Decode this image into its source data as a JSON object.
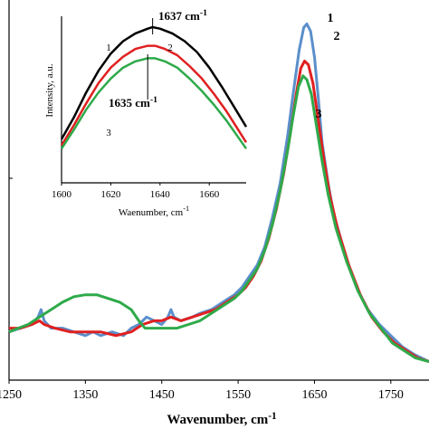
{
  "chart_data": [
    {
      "type": "line",
      "panel": "main",
      "xlabel": "Wavenumber, cm",
      "xlabel_superscript": "-1",
      "ylabel": "",
      "xlim": [
        1250,
        1800
      ],
      "ylim": [
        0,
        1.0
      ],
      "xticks": [
        1250,
        1350,
        1450,
        1550,
        1650,
        1750
      ],
      "xtick_labels": [
        "1250",
        "1350",
        "1450",
        "1550",
        "1650",
        "1750"
      ],
      "grid": false,
      "series": [
        {
          "curve_label": "1",
          "color": "#5b8fcb",
          "points": [
            [
              1250,
              0.13
            ],
            [
              1265,
              0.14
            ],
            [
              1280,
              0.15
            ],
            [
              1288,
              0.17
            ],
            [
              1292,
              0.19
            ],
            [
              1296,
              0.16
            ],
            [
              1305,
              0.14
            ],
            [
              1320,
              0.14
            ],
            [
              1335,
              0.13
            ],
            [
              1350,
              0.12
            ],
            [
              1360,
              0.13
            ],
            [
              1370,
              0.12
            ],
            [
              1385,
              0.13
            ],
            [
              1400,
              0.12
            ],
            [
              1410,
              0.14
            ],
            [
              1420,
              0.15
            ],
            [
              1430,
              0.17
            ],
            [
              1440,
              0.16
            ],
            [
              1450,
              0.15
            ],
            [
              1458,
              0.17
            ],
            [
              1462,
              0.19
            ],
            [
              1466,
              0.17
            ],
            [
              1475,
              0.16
            ],
            [
              1490,
              0.17
            ],
            [
              1500,
              0.18
            ],
            [
              1515,
              0.19
            ],
            [
              1530,
              0.21
            ],
            [
              1545,
              0.23
            ],
            [
              1555,
              0.25
            ],
            [
              1565,
              0.28
            ],
            [
              1575,
              0.31
            ],
            [
              1585,
              0.36
            ],
            [
              1595,
              0.44
            ],
            [
              1605,
              0.53
            ],
            [
              1615,
              0.66
            ],
            [
              1622,
              0.77
            ],
            [
              1630,
              0.89
            ],
            [
              1636,
              0.95
            ],
            [
              1640,
              0.96
            ],
            [
              1645,
              0.94
            ],
            [
              1650,
              0.87
            ],
            [
              1655,
              0.76
            ],
            [
              1660,
              0.64
            ],
            [
              1668,
              0.53
            ],
            [
              1675,
              0.45
            ],
            [
              1690,
              0.34
            ],
            [
              1705,
              0.25
            ],
            [
              1720,
              0.19
            ],
            [
              1735,
              0.15
            ],
            [
              1750,
              0.12
            ],
            [
              1765,
              0.09
            ],
            [
              1780,
              0.07
            ],
            [
              1800,
              0.05
            ]
          ]
        },
        {
          "curve_label": "2",
          "color": "#e02020",
          "points": [
            [
              1250,
              0.14
            ],
            [
              1265,
              0.14
            ],
            [
              1280,
              0.15
            ],
            [
              1290,
              0.16
            ],
            [
              1296,
              0.15
            ],
            [
              1310,
              0.14
            ],
            [
              1330,
              0.13
            ],
            [
              1350,
              0.13
            ],
            [
              1370,
              0.13
            ],
            [
              1390,
              0.12
            ],
            [
              1410,
              0.13
            ],
            [
              1425,
              0.15
            ],
            [
              1440,
              0.16
            ],
            [
              1450,
              0.16
            ],
            [
              1462,
              0.17
            ],
            [
              1475,
              0.16
            ],
            [
              1490,
              0.17
            ],
            [
              1505,
              0.18
            ],
            [
              1520,
              0.19
            ],
            [
              1535,
              0.21
            ],
            [
              1550,
              0.23
            ],
            [
              1560,
              0.25
            ],
            [
              1570,
              0.28
            ],
            [
              1580,
              0.32
            ],
            [
              1590,
              0.38
            ],
            [
              1600,
              0.46
            ],
            [
              1610,
              0.56
            ],
            [
              1618,
              0.66
            ],
            [
              1626,
              0.77
            ],
            [
              1632,
              0.84
            ],
            [
              1637,
              0.86
            ],
            [
              1642,
              0.85
            ],
            [
              1648,
              0.8
            ],
            [
              1655,
              0.7
            ],
            [
              1662,
              0.6
            ],
            [
              1670,
              0.5
            ],
            [
              1680,
              0.41
            ],
            [
              1695,
              0.31
            ],
            [
              1710,
              0.23
            ],
            [
              1725,
              0.17
            ],
            [
              1740,
              0.13
            ],
            [
              1755,
              0.1
            ],
            [
              1770,
              0.08
            ],
            [
              1785,
              0.06
            ],
            [
              1800,
              0.05
            ]
          ]
        },
        {
          "curve_label": "3",
          "color": "#2eaa4a",
          "points": [
            [
              1250,
              0.13
            ],
            [
              1262,
              0.14
            ],
            [
              1275,
              0.15
            ],
            [
              1290,
              0.17
            ],
            [
              1305,
              0.19
            ],
            [
              1320,
              0.21
            ],
            [
              1335,
              0.225
            ],
            [
              1350,
              0.23
            ],
            [
              1365,
              0.23
            ],
            [
              1380,
              0.22
            ],
            [
              1395,
              0.21
            ],
            [
              1410,
              0.19
            ],
            [
              1420,
              0.16
            ],
            [
              1428,
              0.14
            ],
            [
              1440,
              0.14
            ],
            [
              1455,
              0.14
            ],
            [
              1470,
              0.14
            ],
            [
              1485,
              0.15
            ],
            [
              1500,
              0.16
            ],
            [
              1515,
              0.18
            ],
            [
              1530,
              0.2
            ],
            [
              1545,
              0.22
            ],
            [
              1555,
              0.24
            ],
            [
              1565,
              0.27
            ],
            [
              1575,
              0.3
            ],
            [
              1585,
              0.35
            ],
            [
              1595,
              0.42
            ],
            [
              1605,
              0.51
            ],
            [
              1615,
              0.62
            ],
            [
              1622,
              0.71
            ],
            [
              1629,
              0.79
            ],
            [
              1635,
              0.82
            ],
            [
              1640,
              0.81
            ],
            [
              1646,
              0.77
            ],
            [
              1653,
              0.68
            ],
            [
              1660,
              0.59
            ],
            [
              1668,
              0.5
            ],
            [
              1678,
              0.41
            ],
            [
              1692,
              0.32
            ],
            [
              1707,
              0.24
            ],
            [
              1722,
              0.18
            ],
            [
              1737,
              0.14
            ],
            [
              1752,
              0.1
            ],
            [
              1767,
              0.08
            ],
            [
              1782,
              0.06
            ],
            [
              1800,
              0.05
            ]
          ]
        }
      ]
    },
    {
      "type": "line",
      "panel": "inset",
      "xlabel": "Waenumber, cm",
      "xlabel_superscript": "-1",
      "ylabel": "Intensity, a.u.",
      "xlim": [
        1600,
        1675
      ],
      "ylim": [
        0,
        1.0
      ],
      "xticks": [
        1600,
        1620,
        1640,
        1660
      ],
      "xtick_labels": [
        "1600",
        "1620",
        "1640",
        "1660"
      ],
      "grid": false,
      "annotations": [
        {
          "text": "1637",
          "unit": "cm",
          "superscript": "-1",
          "x": 1637,
          "position": "above"
        },
        {
          "text": "1635",
          "unit": "cm",
          "superscript": "-1",
          "x": 1635,
          "position": "below"
        }
      ],
      "series": [
        {
          "curve_label": "1",
          "color": "#000000",
          "points": [
            [
              1600,
              0.28
            ],
            [
              1605,
              0.42
            ],
            [
              1610,
              0.58
            ],
            [
              1615,
              0.72
            ],
            [
              1620,
              0.83
            ],
            [
              1625,
              0.91
            ],
            [
              1630,
              0.96
            ],
            [
              1635,
              0.99
            ],
            [
              1637,
              1.0
            ],
            [
              1640,
              0.99
            ],
            [
              1645,
              0.96
            ],
            [
              1650,
              0.91
            ],
            [
              1655,
              0.84
            ],
            [
              1660,
              0.74
            ],
            [
              1665,
              0.62
            ],
            [
              1670,
              0.49
            ],
            [
              1675,
              0.36
            ]
          ]
        },
        {
          "curve_label": "2",
          "color": "#e02020",
          "points": [
            [
              1600,
              0.24
            ],
            [
              1605,
              0.37
            ],
            [
              1610,
              0.51
            ],
            [
              1615,
              0.64
            ],
            [
              1620,
              0.74
            ],
            [
              1625,
              0.81
            ],
            [
              1630,
              0.86
            ],
            [
              1635,
              0.88
            ],
            [
              1638,
              0.88
            ],
            [
              1642,
              0.86
            ],
            [
              1647,
              0.82
            ],
            [
              1652,
              0.75
            ],
            [
              1657,
              0.67
            ],
            [
              1662,
              0.57
            ],
            [
              1667,
              0.46
            ],
            [
              1671,
              0.36
            ],
            [
              1675,
              0.26
            ]
          ]
        },
        {
          "curve_label": "3",
          "color": "#2eaa4a",
          "points": [
            [
              1600,
              0.22
            ],
            [
              1605,
              0.34
            ],
            [
              1610,
              0.47
            ],
            [
              1615,
              0.58
            ],
            [
              1620,
              0.67
            ],
            [
              1625,
              0.74
            ],
            [
              1630,
              0.78
            ],
            [
              1635,
              0.8
            ],
            [
              1638,
              0.8
            ],
            [
              1642,
              0.78
            ],
            [
              1647,
              0.74
            ],
            [
              1652,
              0.67
            ],
            [
              1657,
              0.59
            ],
            [
              1662,
              0.5
            ],
            [
              1667,
              0.4
            ],
            [
              1671,
              0.31
            ],
            [
              1675,
              0.22
            ]
          ]
        }
      ]
    }
  ]
}
